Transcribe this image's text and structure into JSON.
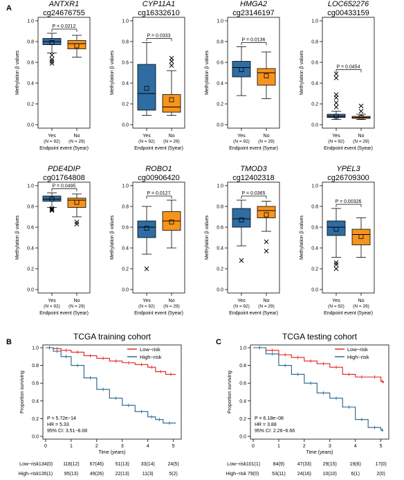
{
  "panel_labels": {
    "a": "A",
    "b": "B",
    "c": "C"
  },
  "colors": {
    "yes": "#2e6da4",
    "no": "#f7941d",
    "low_risk": "#e31a1c",
    "high_risk": "#1f5f8b"
  },
  "box_common": {
    "ylabel": "Methylation β values",
    "xlabel": "Endpoint event (5year)",
    "yes_label": "Yes",
    "yes_n": "(N = 92)",
    "no_label": "No",
    "no_n": "(N = 29)",
    "yticks": [
      "0.0",
      "0.2",
      "0.4",
      "0.6",
      "0.8",
      "1.0"
    ]
  },
  "km_common": {
    "xlabel": "Time (years)",
    "ylabel": "Proportion surviving",
    "xticks": [
      "0",
      "1",
      "2",
      "3",
      "4",
      "5"
    ],
    "yticks": [
      "0.0",
      "0.2",
      "0.4",
      "0.6",
      "0.8",
      "1.0"
    ],
    "legend": [
      "Low−risk",
      "High−risk"
    ],
    "row_labels": [
      "Low−risk",
      "High−risk"
    ]
  },
  "chart_data": [
    {
      "type": "box",
      "gene": "ANTXR1",
      "probe": "cg24676755",
      "pvalue": "P = 0.0212",
      "ylim": [
        0,
        1
      ],
      "yes": {
        "q1": 0.77,
        "median": 0.8,
        "q3": 0.83,
        "whisker_low": 0.69,
        "whisker_high": 0.88,
        "mean": 0.79,
        "outliers": [
          0.67,
          0.63,
          0.61,
          0.59
        ]
      },
      "no": {
        "q1": 0.73,
        "median": 0.78,
        "q3": 0.81,
        "whisker_low": 0.65,
        "whisker_high": 0.86,
        "mean": 0.76,
        "outliers": []
      }
    },
    {
      "type": "box",
      "gene": "CYP11A1",
      "probe": "cg16332610",
      "pvalue": "P = 0.0333",
      "ylim": [
        0,
        1
      ],
      "yes": {
        "q1": 0.14,
        "median": 0.3,
        "q3": 0.58,
        "whisker_low": 0.09,
        "whisker_high": 0.79,
        "mean": 0.35,
        "outliers": []
      },
      "no": {
        "q1": 0.12,
        "median": 0.17,
        "q3": 0.29,
        "whisker_low": 0.09,
        "whisker_high": 0.52,
        "mean": 0.24,
        "outliers": [
          0.64,
          0.61,
          0.57
        ]
      }
    },
    {
      "type": "box",
      "gene": "HMGA2",
      "probe": "cg23146197",
      "pvalue": "P = 0.0136",
      "ylim": [
        0,
        1
      ],
      "yes": {
        "q1": 0.46,
        "median": 0.55,
        "q3": 0.61,
        "whisker_low": 0.28,
        "whisker_high": 0.75,
        "mean": 0.53,
        "outliers": []
      },
      "no": {
        "q1": 0.38,
        "median": 0.5,
        "q3": 0.54,
        "whisker_low": 0.25,
        "whisker_high": 0.7,
        "mean": 0.47,
        "outliers": []
      }
    },
    {
      "type": "box",
      "gene": "LOC652276",
      "probe": "cg00433159",
      "pvalue": "P = 0.0454",
      "ylim": [
        0,
        1
      ],
      "yes": {
        "q1": 0.07,
        "median": 0.08,
        "q3": 0.1,
        "whisker_low": 0.05,
        "whisker_high": 0.13,
        "mean": 0.08,
        "outliers": [
          0.49,
          0.45,
          0.29,
          0.26,
          0.21,
          0.17
        ]
      },
      "no": {
        "q1": 0.06,
        "median": 0.07,
        "q3": 0.08,
        "whisker_low": 0.05,
        "whisker_high": 0.1,
        "mean": 0.07,
        "outliers": [
          0.18,
          0.13
        ]
      }
    },
    {
      "type": "box",
      "gene": "PDE4DIP",
      "probe": "cg01764808",
      "pvalue": "P = 0.0495",
      "ylim": [
        0,
        1
      ],
      "yes": {
        "q1": 0.85,
        "median": 0.87,
        "q3": 0.9,
        "whisker_low": 0.79,
        "whisker_high": 0.93,
        "mean": 0.87,
        "outliers": [
          0.78,
          0.77,
          0.76
        ]
      },
      "no": {
        "q1": 0.79,
        "median": 0.86,
        "q3": 0.88,
        "whisker_low": 0.7,
        "whisker_high": 0.92,
        "mean": 0.84,
        "outliers": [
          0.65,
          0.63
        ]
      }
    },
    {
      "type": "box",
      "gene": "ROBO1",
      "probe": "cg00906420",
      "pvalue": "P = 0.0127",
      "ylim": [
        0,
        1
      ],
      "yes": {
        "q1": 0.5,
        "median": 0.6,
        "q3": 0.66,
        "whisker_low": 0.34,
        "whisker_high": 0.8,
        "mean": 0.59,
        "outliers": [
          0.2
        ]
      },
      "no": {
        "q1": 0.57,
        "median": 0.66,
        "q3": 0.75,
        "whisker_low": 0.4,
        "whisker_high": 0.86,
        "mean": 0.65,
        "outliers": []
      }
    },
    {
      "type": "box",
      "gene": "TMOD3",
      "probe": "cg12402318",
      "pvalue": "P = 0.0365",
      "ylim": [
        0,
        1
      ],
      "yes": {
        "q1": 0.6,
        "median": 0.68,
        "q3": 0.78,
        "whisker_low": 0.42,
        "whisker_high": 0.86,
        "mean": 0.67,
        "outliers": [
          0.28
        ]
      },
      "no": {
        "q1": 0.69,
        "median": 0.76,
        "q3": 0.8,
        "whisker_low": 0.56,
        "whisker_high": 0.85,
        "mean": 0.72,
        "outliers": [
          0.46,
          0.37
        ]
      }
    },
    {
      "type": "box",
      "gene": "YPEL3",
      "probe": "cg26709300",
      "pvalue": "P = 0.00326",
      "ylim": [
        0,
        1
      ],
      "yes": {
        "q1": 0.52,
        "median": 0.6,
        "q3": 0.66,
        "whisker_low": 0.31,
        "whisker_high": 0.78,
        "mean": 0.58,
        "outliers": [
          0.26,
          0.24,
          0.2
        ]
      },
      "no": {
        "q1": 0.43,
        "median": 0.53,
        "q3": 0.58,
        "whisker_low": 0.31,
        "whisker_high": 0.69,
        "mean": 0.51,
        "outliers": []
      }
    },
    {
      "type": "line",
      "title": "TCGA training cohort",
      "stats": [
        "P = 5.72e−14",
        "HR = 5.33",
        "95% CI: 3.51−8.08"
      ],
      "xlim": [
        0,
        5.2
      ],
      "ylim": [
        0,
        1
      ],
      "series": [
        {
          "name": "Low−risk",
          "x": [
            0,
            0.3,
            0.6,
            1.0,
            1.5,
            2.0,
            2.5,
            3.0,
            3.5,
            4.0,
            4.3,
            4.7,
            5.1
          ],
          "y": [
            1.0,
            0.99,
            0.97,
            0.95,
            0.91,
            0.88,
            0.85,
            0.83,
            0.81,
            0.78,
            0.73,
            0.7,
            0.7
          ]
        },
        {
          "name": "High−risk",
          "x": [
            0,
            0.3,
            0.6,
            1.0,
            1.5,
            2.0,
            2.5,
            3.0,
            3.5,
            4.0,
            4.3,
            4.6,
            5.1
          ],
          "y": [
            1.0,
            0.96,
            0.9,
            0.8,
            0.66,
            0.53,
            0.43,
            0.35,
            0.28,
            0.22,
            0.19,
            0.15,
            0.15
          ]
        }
      ],
      "risk_table": {
        "low": [
          "134(0)",
          "118(12)",
          "67(46)",
          "51(13)",
          "33(14)",
          "24(5)"
        ],
        "high": [
          "135(1)",
          "95(13)",
          "49(26)",
          "22(13)",
          "11(3)",
          "5(2)"
        ]
      }
    },
    {
      "type": "line",
      "title": "TCGA testing cohort",
      "stats": [
        "P = 6.18e−08",
        "HR = 3.88",
        "95% CI: 2.26−6.66"
      ],
      "xlim": [
        0,
        5.2
      ],
      "ylim": [
        0,
        1
      ],
      "series": [
        {
          "name": "Low−risk",
          "x": [
            0,
            0.5,
            1.0,
            1.5,
            2.0,
            2.5,
            3.0,
            3.5,
            4.0,
            4.5,
            5.0,
            5.1
          ],
          "y": [
            1.0,
            0.97,
            0.92,
            0.89,
            0.85,
            0.82,
            0.78,
            0.7,
            0.67,
            0.67,
            0.62,
            0.6
          ]
        },
        {
          "name": "High−risk",
          "x": [
            0,
            0.5,
            1.0,
            1.5,
            2.0,
            2.5,
            3.0,
            3.5,
            4.0,
            4.5,
            5.0,
            5.1
          ],
          "y": [
            1.0,
            0.93,
            0.8,
            0.7,
            0.6,
            0.49,
            0.43,
            0.33,
            0.19,
            0.1,
            0.07,
            0.07
          ]
        }
      ],
      "risk_table": {
        "low": [
          "101(1)",
          "84(9)",
          "47(33)",
          "29(15)",
          "19(6)",
          "17(0)"
        ],
        "high": [
          "79(0)",
          "53(11)",
          "24(16)",
          "10(10)",
          "6(1)",
          "2(0)"
        ]
      }
    }
  ]
}
